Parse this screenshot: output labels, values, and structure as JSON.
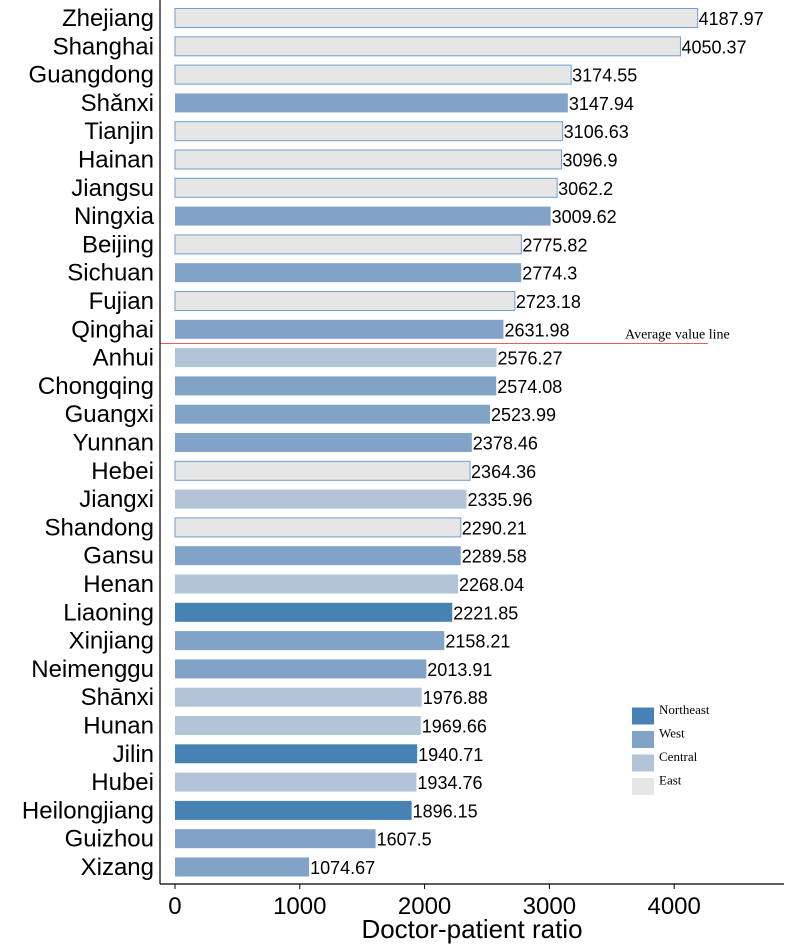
{
  "chart_data": {
    "type": "bar",
    "orientation": "horizontal",
    "xlabel": "Doctor-patient ratio",
    "ylabel": "",
    "xlim": [
      -120,
      4880
    ],
    "xticks": [
      0,
      1000,
      2000,
      3000,
      4000
    ],
    "categories": [
      "Zhejiang",
      "Shanghai",
      "Guangdong",
      "Shǎnxi",
      "Tianjin",
      "Hainan",
      "Jiangsu",
      "Ningxia",
      "Beijing",
      "Sichuan",
      "Fujian",
      "Qinghai",
      "Anhui",
      "Chongqing",
      "Guangxi",
      "Yunnan",
      "Hebei",
      "Jiangxi",
      "Shandong",
      "Gansu",
      "Henan",
      "Liaoning",
      "Xinjiang",
      "Neimenggu",
      "Shānxi",
      "Hunan",
      "Jilin",
      "Hubei",
      "Heilongjiang",
      "Guizhou",
      "Xizang"
    ],
    "values": [
      4187.97,
      4050.37,
      3174.55,
      3147.94,
      3106.63,
      3096.9,
      3062.2,
      3009.62,
      2775.82,
      2774.3,
      2723.18,
      2631.98,
      2576.27,
      2574.08,
      2523.99,
      2378.46,
      2364.36,
      2335.96,
      2290.21,
      2289.58,
      2268.04,
      2221.85,
      2158.21,
      2013.91,
      1976.88,
      1969.66,
      1940.71,
      1934.76,
      1896.15,
      1607.5,
      1074.67
    ],
    "value_labels": [
      "4187.97",
      "4050.37",
      "3174.55",
      "3147.94",
      "3106.63",
      "3096.9",
      "3062.2",
      "3009.62",
      "2775.82",
      "2774.3",
      "2723.18",
      "2631.98",
      "2576.27",
      "2574.08",
      "2523.99",
      "2378.46",
      "2364.36",
      "2335.96",
      "2290.21",
      "2289.58",
      "2268.04",
      "2221.85",
      "2158.21",
      "2013.91",
      "1976.88",
      "1969.66",
      "1940.71",
      "1934.76",
      "1896.15",
      "1607.5",
      "1074.67"
    ],
    "groups": [
      "East",
      "East",
      "East",
      "West",
      "East",
      "East",
      "East",
      "West",
      "East",
      "West",
      "East",
      "West",
      "Central",
      "West",
      "West",
      "West",
      "East",
      "Central",
      "East",
      "West",
      "Central",
      "Northeast",
      "West",
      "West",
      "Central",
      "Central",
      "Northeast",
      "Central",
      "Northeast",
      "West",
      "West"
    ],
    "legend": {
      "position": "bottom-right",
      "entries": [
        {
          "name": "Northeast",
          "color": "#4682b4"
        },
        {
          "name": "West",
          "color": "#82a3c8"
        },
        {
          "name": "Central",
          "color": "#b3c4d9"
        },
        {
          "name": "East",
          "color": "#e6e6e6"
        }
      ]
    },
    "average_line": {
      "label": "Average value line",
      "color": "#e06060"
    },
    "bar_edge_color": "#6f9fcf",
    "grid": false
  }
}
